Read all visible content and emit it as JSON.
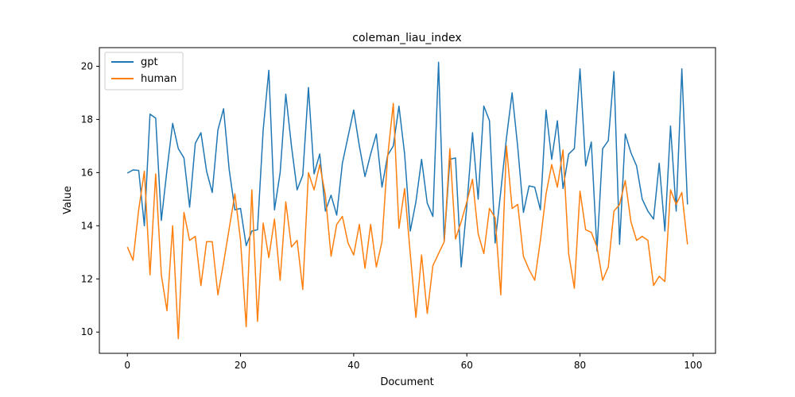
{
  "chart_data": {
    "type": "line",
    "title": "coleman_liau_index",
    "xlabel": "Document",
    "ylabel": "Value",
    "xlim": [
      -4.95,
      103.95
    ],
    "ylim": [
      9.2,
      20.7
    ],
    "xticks": [
      0,
      20,
      40,
      60,
      80,
      100
    ],
    "yticks": [
      10,
      12,
      14,
      16,
      18,
      20
    ],
    "legend_position": "top-left",
    "grid": false,
    "x": [
      0,
      1,
      2,
      3,
      4,
      5,
      6,
      7,
      8,
      9,
      10,
      11,
      12,
      13,
      14,
      15,
      16,
      17,
      18,
      19,
      20,
      21,
      22,
      23,
      24,
      25,
      26,
      27,
      28,
      29,
      30,
      31,
      32,
      33,
      34,
      35,
      36,
      37,
      38,
      39,
      40,
      41,
      42,
      43,
      44,
      45,
      46,
      47,
      48,
      49,
      50,
      51,
      52,
      53,
      54,
      55,
      56,
      57,
      58,
      59,
      60,
      61,
      62,
      63,
      64,
      65,
      66,
      67,
      68,
      69,
      70,
      71,
      72,
      73,
      74,
      75,
      76,
      77,
      78,
      79,
      80,
      81,
      82,
      83,
      84,
      85,
      86,
      87,
      88,
      89,
      90,
      91,
      92,
      93,
      94,
      95,
      96,
      97,
      98,
      99
    ],
    "series": [
      {
        "name": "gpt",
        "color": "#1f77b4",
        "values": [
          15.98,
          16.1,
          16.08,
          14.0,
          18.2,
          18.05,
          14.2,
          16.1,
          17.85,
          16.9,
          16.55,
          14.7,
          17.1,
          17.5,
          16.05,
          15.25,
          17.6,
          18.4,
          16.1,
          14.6,
          14.65,
          13.25,
          13.8,
          13.85,
          17.6,
          19.85,
          14.6,
          16.0,
          18.95,
          17.0,
          15.35,
          15.9,
          19.2,
          15.95,
          16.7,
          14.55,
          15.15,
          14.4,
          16.35,
          17.35,
          18.35,
          17.0,
          15.85,
          16.7,
          17.45,
          15.45,
          16.65,
          17.0,
          18.5,
          16.7,
          13.8,
          14.9,
          16.5,
          14.85,
          14.35,
          20.15,
          13.4,
          16.5,
          16.55,
          12.45,
          14.75,
          17.5,
          15.0,
          18.5,
          17.95,
          13.35,
          15.3,
          17.3,
          19.0,
          16.95,
          14.5,
          15.5,
          15.45,
          14.6,
          18.35,
          16.5,
          17.95,
          15.4,
          16.7,
          16.9,
          19.9,
          16.25,
          17.15,
          13.05,
          16.9,
          17.2,
          19.8,
          13.3,
          17.45,
          16.75,
          16.25,
          15.0,
          14.55,
          14.25,
          16.35,
          13.8,
          17.75,
          14.55,
          19.9,
          14.8
        ]
      },
      {
        "name": "human",
        "color": "#ff7f0e",
        "values": [
          13.2,
          12.7,
          14.6,
          16.05,
          12.15,
          15.95,
          12.15,
          10.8,
          14.0,
          9.75,
          14.5,
          13.45,
          13.6,
          11.75,
          13.4,
          13.4,
          11.4,
          12.6,
          13.9,
          15.2,
          13.45,
          10.2,
          15.35,
          10.4,
          14.1,
          12.8,
          14.25,
          11.95,
          14.9,
          13.2,
          13.45,
          11.6,
          16.0,
          15.35,
          16.3,
          15.15,
          12.85,
          14.05,
          14.35,
          13.35,
          12.9,
          14.05,
          12.4,
          14.05,
          12.45,
          13.4,
          16.6,
          18.6,
          13.9,
          15.4,
          12.95,
          10.55,
          12.9,
          10.7,
          12.5,
          12.95,
          13.4,
          16.9,
          13.5,
          14.15,
          14.9,
          15.75,
          13.7,
          12.95,
          14.65,
          14.3,
          11.4,
          17.0,
          14.65,
          14.8,
          12.85,
          12.35,
          11.95,
          13.45,
          15.2,
          16.3,
          15.45,
          16.85,
          12.95,
          11.65,
          15.3,
          13.85,
          13.75,
          13.2,
          11.95,
          12.45,
          14.55,
          14.8,
          15.7,
          14.15,
          13.45,
          13.6,
          13.45,
          11.75,
          12.1,
          11.9,
          15.35,
          14.8,
          15.25,
          13.3
        ]
      }
    ]
  }
}
